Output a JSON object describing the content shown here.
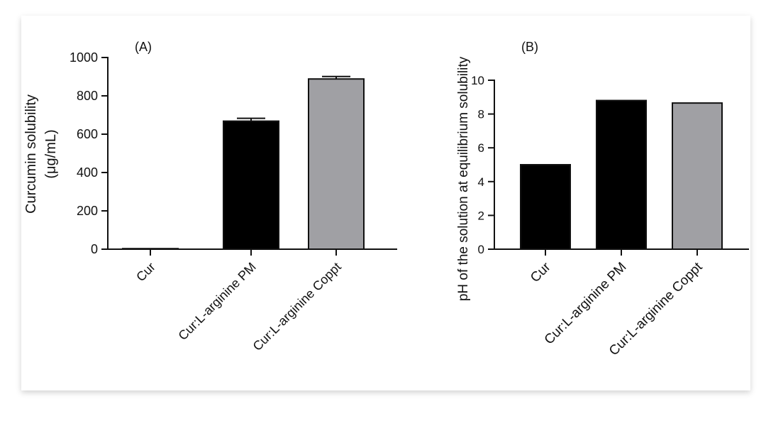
{
  "chart_data": [
    {
      "type": "bar",
      "panel_label": "(A)",
      "categories": [
        "Cur",
        "Cur:L-arginine PM",
        "Cur:L-arginine Coppt"
      ],
      "values": [
        3,
        668,
        888
      ],
      "errors": [
        0,
        15,
        13
      ],
      "colors": [
        "#000000",
        "#000000",
        "#a0a0a4"
      ],
      "ylabel_line1": "Curcumin solubility",
      "ylabel_line2": "(μg/mL)",
      "ylim": [
        0,
        1000
      ],
      "yticks": [
        "0",
        "200",
        "400",
        "600",
        "800",
        "1000"
      ]
    },
    {
      "type": "bar",
      "panel_label": "(B)",
      "categories": [
        "Cur",
        "Cur:L-arginine PM",
        "Cur:L-arginine Coppt"
      ],
      "values": [
        5.0,
        8.8,
        8.65
      ],
      "colors": [
        "#000000",
        "#000000",
        "#a0a0a4"
      ],
      "ylabel": "pH of the solution at equilibrium solubility",
      "ylim": [
        0,
        10
      ],
      "yticks": [
        "0",
        "2",
        "4",
        "6",
        "8",
        "10"
      ]
    }
  ]
}
